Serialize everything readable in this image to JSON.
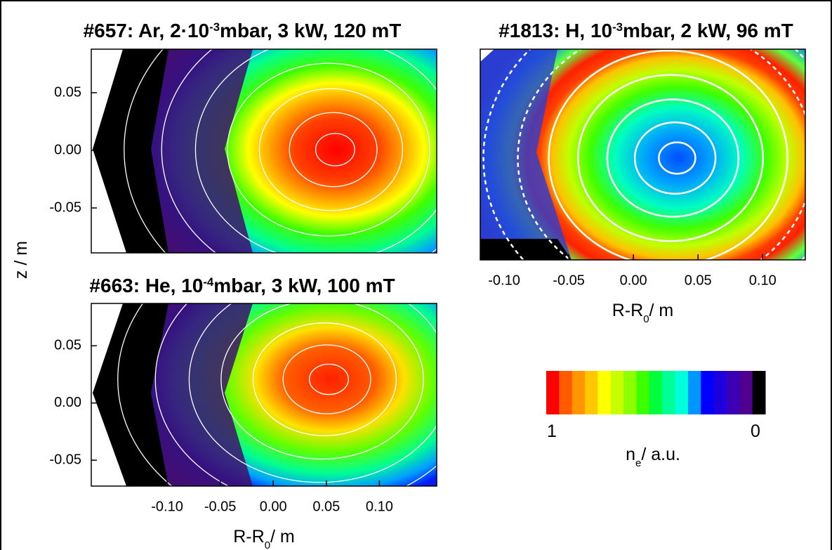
{
  "panels": [
    {
      "title": {
        "pre": "#657: Ar, 2·10",
        "sup": "-3",
        "post": "mbar, 3 kW, 120 mT"
      },
      "ylim": [
        -0.089,
        0.0878
      ],
      "yticks": [
        0.05,
        {
          "value": 0,
          "label": "0.00"
        },
        -0.05
      ]
    },
    {
      "title": {
        "pre": "#663: He, 10",
        "sup": "-4",
        "post": "mbar, 3 kW, 100 mT"
      },
      "xlim": [
        -0.1715,
        0.154
      ],
      "ylim": [
        -0.0726,
        0.087
      ],
      "xticks": [
        {
          "value": -0.1,
          "label": "-0.10"
        },
        -0.05,
        {
          "value": 0,
          "label": "0.00"
        },
        0.05,
        {
          "value": 0.1,
          "label": "0.10"
        }
      ],
      "yticks": [
        0.05,
        {
          "value": 0,
          "label": "0.00"
        },
        -0.05
      ],
      "xlabel": {
        "main": "R-R",
        "sub": "0",
        "post": "/ m"
      }
    },
    {
      "title": {
        "pre": "#1813: H, 10",
        "sup": "-3",
        "post": "mbar, 2 kW, 96 mT"
      },
      "xlim": [
        -0.1185,
        0.133
      ],
      "xticks": [
        {
          "value": -0.1,
          "label": "-0.10"
        },
        -0.05,
        {
          "value": 0,
          "label": "0.00"
        },
        0.05,
        {
          "value": 0.1,
          "label": "0.10"
        }
      ],
      "xlabel": {
        "main": "R-R",
        "sub": "0",
        "post": "/ m"
      }
    }
  ],
  "ylabel": "z / m",
  "colorbar": {
    "high": "1",
    "low": "0",
    "label": {
      "main": "n",
      "sub": "e",
      "post": "/ a.u."
    },
    "colors": [
      "#ff0000",
      "#ff5a00",
      "#ff9600",
      "#ffc800",
      "#ffff00",
      "#c8ff00",
      "#8cff00",
      "#3cff00",
      "#00ff3c",
      "#00ff96",
      "#00ffdc",
      "#0096ff",
      "#0000ff",
      "#1e00dc",
      "#3c00b4",
      "#500090",
      "#000000"
    ]
  }
}
